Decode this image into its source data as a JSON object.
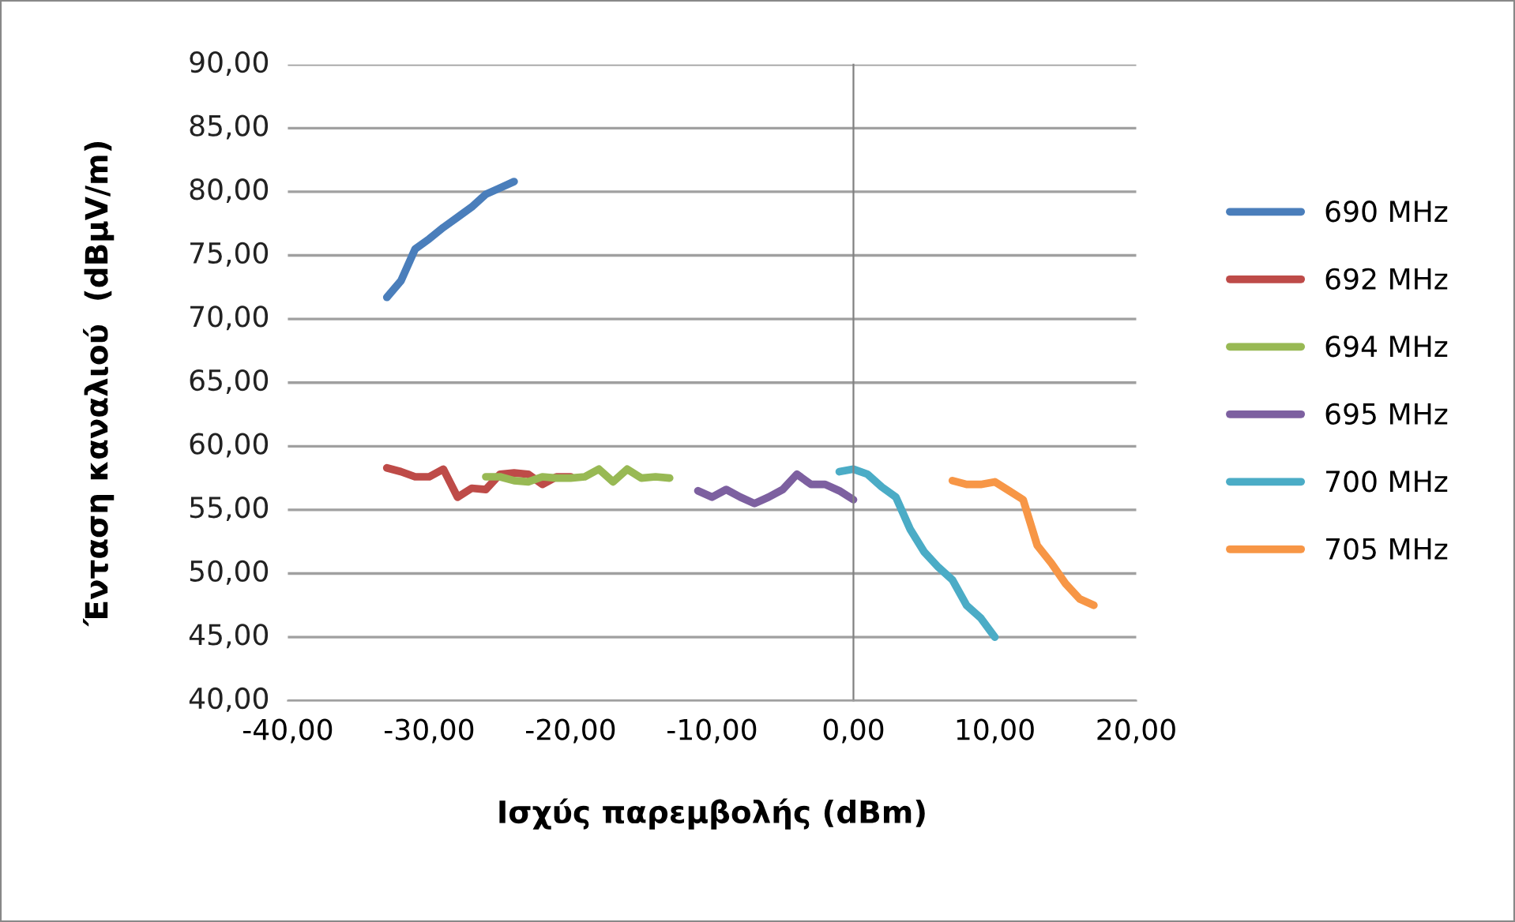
{
  "chart_data": {
    "type": "line",
    "xlabel": "Ισχύς παρεμβολής (dBm)",
    "ylabel": "Ένταση καναλιού  (dBμV/m)",
    "xlim": [
      -40,
      20
    ],
    "xticks": [
      {
        "value": -40,
        "label": "-40,00"
      },
      {
        "value": -30,
        "label": "-30,00"
      },
      {
        "value": -20,
        "label": "-20,00"
      },
      {
        "value": -10,
        "label": "-10,00"
      },
      {
        "value": 0,
        "label": "0,00"
      },
      {
        "value": 10,
        "label": "10,00"
      },
      {
        "value": 20,
        "label": "20,00"
      }
    ],
    "ylim": [
      40,
      90
    ],
    "yticks": [
      {
        "value": 40,
        "label": "40,00"
      },
      {
        "value": 45,
        "label": "45,00"
      },
      {
        "value": 50,
        "label": "50,00"
      },
      {
        "value": 55,
        "label": "55,00"
      },
      {
        "value": 60,
        "label": "60,00"
      },
      {
        "value": 65,
        "label": "65,00"
      },
      {
        "value": 70,
        "label": "70,00"
      },
      {
        "value": 75,
        "label": "75,00"
      },
      {
        "value": 80,
        "label": "80,00"
      },
      {
        "value": 85,
        "label": "85,00"
      },
      {
        "value": 90,
        "label": "90,00"
      }
    ],
    "grid": "y",
    "legend": "right",
    "marker": "none",
    "line_style": "solid",
    "series": [
      {
        "name": "690 MHz",
        "color": "#4a7ebb",
        "x": [
          -33,
          -32,
          -31,
          -30,
          -29,
          -28,
          -27,
          -26,
          -25,
          -24
        ],
        "values": [
          71.7,
          73.0,
          75.5,
          76.3,
          77.2,
          78.0,
          78.8,
          79.8,
          80.3,
          80.8
        ]
      },
      {
        "name": "692 MHz",
        "color": "#be4b48",
        "x": [
          -33,
          -32,
          -31,
          -30,
          -29,
          -28,
          -27,
          -26,
          -25,
          -24,
          -23,
          -22,
          -21,
          -20
        ],
        "values": [
          58.3,
          58.0,
          57.6,
          57.6,
          58.2,
          56.0,
          56.7,
          56.6,
          57.8,
          57.9,
          57.8,
          57.0,
          57.6,
          57.6
        ]
      },
      {
        "name": "694 MHz",
        "color": "#98b954",
        "x": [
          -26,
          -25,
          -24,
          -23,
          -22,
          -21,
          -20,
          -19,
          -18,
          -17,
          -16,
          -15,
          -14,
          -13
        ],
        "values": [
          57.6,
          57.6,
          57.3,
          57.2,
          57.6,
          57.5,
          57.5,
          57.6,
          58.2,
          57.2,
          58.2,
          57.5,
          57.6,
          57.5
        ]
      },
      {
        "name": "695 MHz",
        "color": "#7d60a0",
        "x": [
          -11,
          -10,
          -9,
          -8,
          -7,
          -6,
          -5,
          -4,
          -3,
          -2,
          -1,
          0
        ],
        "values": [
          56.5,
          56.0,
          56.6,
          56.0,
          55.5,
          56.0,
          56.6,
          57.8,
          57.0,
          57.0,
          56.5,
          55.8
        ]
      },
      {
        "name": "700 MHz",
        "color": "#4bacc6",
        "x": [
          -1,
          0,
          1,
          2,
          3,
          4,
          5,
          6,
          7,
          8,
          9,
          10
        ],
        "values": [
          58.0,
          58.2,
          57.8,
          56.8,
          56.0,
          53.5,
          51.7,
          50.5,
          49.5,
          47.5,
          46.5,
          45.0
        ]
      },
      {
        "name": "705 MHz",
        "color": "#f79646",
        "x": [
          7,
          8,
          9,
          10,
          11,
          12,
          13,
          14,
          15,
          16,
          17
        ],
        "values": [
          57.3,
          57.0,
          57.0,
          57.2,
          56.5,
          55.8,
          52.2,
          50.8,
          49.2,
          48.0,
          47.5
        ]
      }
    ]
  }
}
